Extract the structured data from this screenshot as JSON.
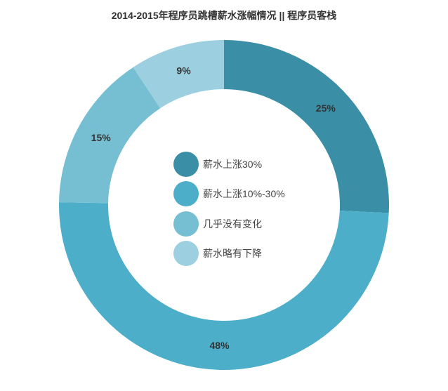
{
  "chart_data": {
    "type": "pie",
    "donut": true,
    "title": "2014-2015年程序员跳槽薪水涨幅情况 || 程序员客栈",
    "categories": [
      "薪水上涨30%",
      "薪水上涨10%-30%",
      "几乎没有变化",
      "薪水略有下降"
    ],
    "values": [
      25,
      48,
      15,
      9
    ],
    "value_suffix": "%",
    "colors": [
      "#3a8ea6",
      "#4caec8",
      "#76bed2",
      "#9cd0e0"
    ],
    "legend": "center"
  }
}
